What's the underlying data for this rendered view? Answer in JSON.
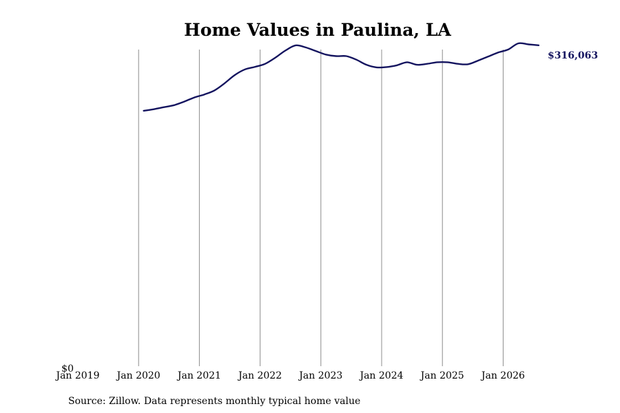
{
  "chart_data": {
    "type": "line",
    "title": "Home Values in Paulina, LA",
    "source_note": "Source: Zillow. Data represents monthly typical home value",
    "end_label": "$316,063",
    "y_tick_label": "$0",
    "xlabel": "",
    "ylabel": "",
    "x_tick_labels": [
      "Jan 2019",
      "Jan 2020",
      "Jan 2021",
      "Jan 2022",
      "Jan 2023",
      "Jan 2024",
      "Jan 2025",
      "Jan 2026"
    ],
    "xlim": [
      "2019-01",
      "2026-12"
    ],
    "ylim": [
      0,
      320000
    ],
    "grid": "vertical lines at year ticks",
    "legend": "none",
    "line_color": "#14145f",
    "grid_color": "#8c8c8c",
    "series": [
      {
        "points": [
          [
            "2020-02",
            252000
          ],
          [
            "2020-04",
            253500
          ],
          [
            "2020-06",
            255500
          ],
          [
            "2020-08",
            257500
          ],
          [
            "2020-10",
            261000
          ],
          [
            "2020-12",
            265000
          ],
          [
            "2021-02",
            268000
          ],
          [
            "2021-04",
            272000
          ],
          [
            "2021-06",
            279000
          ],
          [
            "2021-08",
            287000
          ],
          [
            "2021-10",
            292500
          ],
          [
            "2021-12",
            295000
          ],
          [
            "2022-02",
            298000
          ],
          [
            "2022-04",
            304000
          ],
          [
            "2022-06",
            311000
          ],
          [
            "2022-08",
            316000
          ],
          [
            "2022-10",
            314000
          ],
          [
            "2022-12",
            310500
          ],
          [
            "2023-02",
            307000
          ],
          [
            "2023-04",
            305500
          ],
          [
            "2023-06",
            305500
          ],
          [
            "2023-08",
            302000
          ],
          [
            "2023-10",
            297000
          ],
          [
            "2023-12",
            294500
          ],
          [
            "2024-02",
            294800
          ],
          [
            "2024-04",
            296500
          ],
          [
            "2024-06",
            299500
          ],
          [
            "2024-08",
            297000
          ],
          [
            "2024-10",
            298000
          ],
          [
            "2024-12",
            299500
          ],
          [
            "2025-02",
            299500
          ],
          [
            "2025-04",
            298000
          ],
          [
            "2025-06",
            297500
          ],
          [
            "2025-08",
            301000
          ],
          [
            "2025-10",
            305000
          ],
          [
            "2025-12",
            309000
          ],
          [
            "2026-02",
            312000
          ],
          [
            "2026-04",
            318000
          ],
          [
            "2026-06",
            317000
          ],
          [
            "2026-08",
            316063
          ]
        ]
      }
    ]
  }
}
